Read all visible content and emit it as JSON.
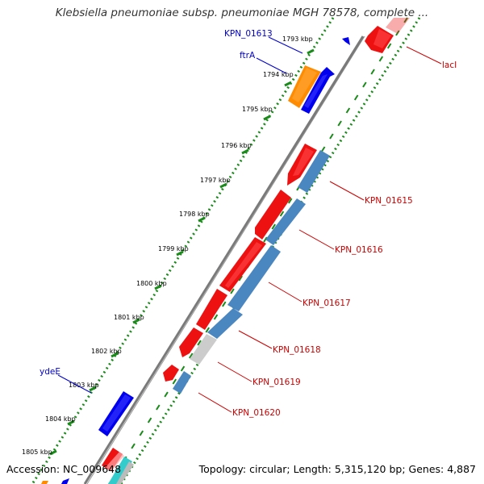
{
  "title": "Klebsiella pneumoniae subsp. pneumoniae MGH 78578, complete ...",
  "accession": "Accession: NC_009648",
  "summary": "Topology: circular; Length: 5,315,120 bp; Genes: 4,887",
  "colors": {
    "backbone": "#7a7a7a",
    "tick": "#1a8a1a",
    "red_gene": "#ee1111",
    "blue_gene": "#0000ee",
    "steel_gene": "#4a86c0",
    "orange_gene": "#ff8c00",
    "gray_gene": "#cccccc",
    "cyan_gene": "#33cccc",
    "label_blue": "#0000cc",
    "label_red": "#cc0000"
  },
  "kbp_ticks": [
    "1793 kbp",
    "1794 kbp",
    "1795 kbp",
    "1796 kbp",
    "1797 kbp",
    "1798 kbp",
    "1799 kbp",
    "1800 kbp",
    "1801 kbp",
    "1802 kbp",
    "1803 kbp",
    "1804 kbp",
    "1805 kbp"
  ],
  "gene_labels": {
    "left": [
      "KPN_01613",
      "ftrA",
      "ydeE"
    ],
    "right": [
      "lacI",
      "KPN_01615",
      "KPN_01616",
      "KPN_01617",
      "KPN_01618",
      "KPN_01619",
      "KPN_01620"
    ]
  }
}
